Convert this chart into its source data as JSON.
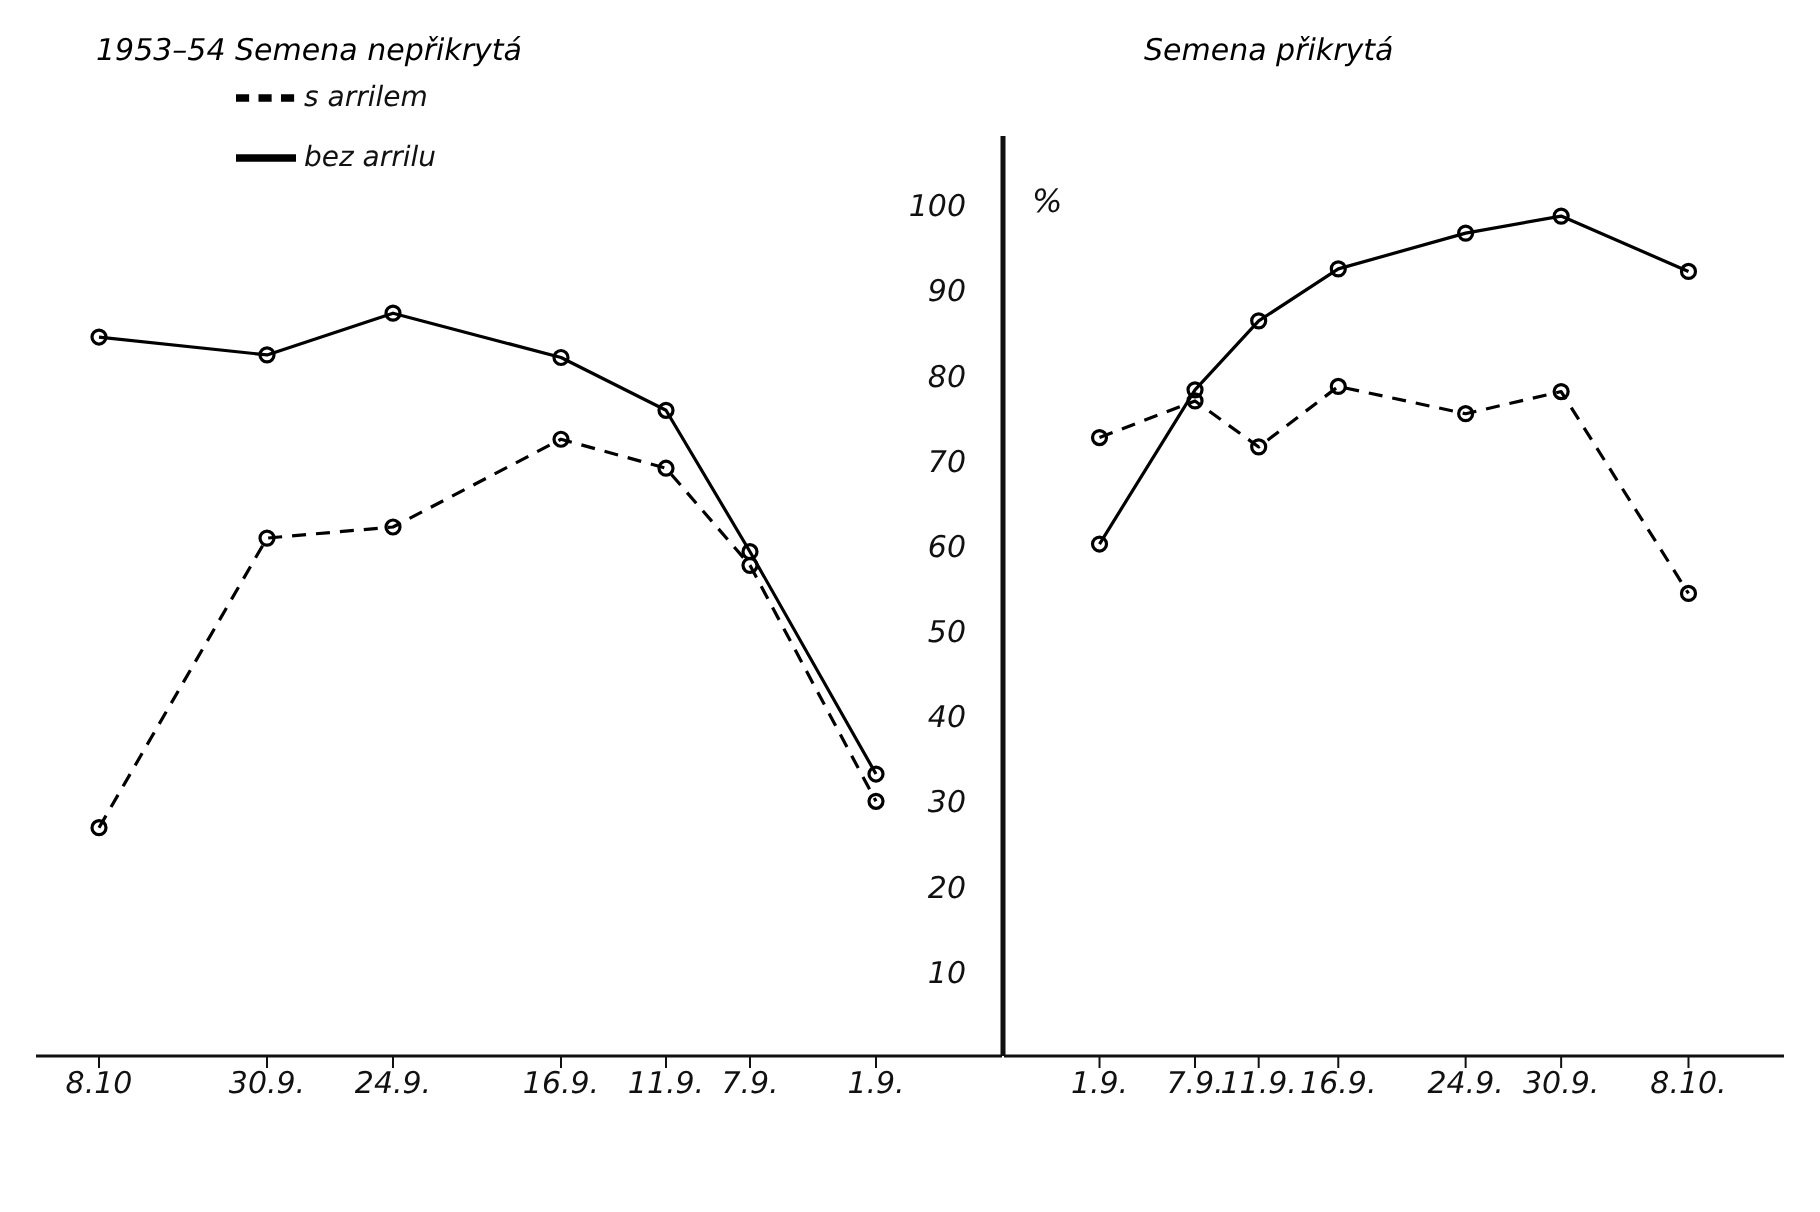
{
  "chart_data": [
    {
      "type": "line",
      "title": "1953–54 Semena nepřikrytá",
      "legend": "top left",
      "marker": "circle",
      "x": [
        "--10-08",
        "--09-30",
        "--09-24",
        "--09-16",
        "--09-11",
        "--09-07",
        "--09-01"
      ],
      "xlim": [
        "--10-11",
        "--08-26"
      ],
      "xticks": [
        {
          "value": "--10-08",
          "label": "8.10"
        },
        {
          "value": "--09-30",
          "label": "30.9."
        },
        {
          "value": "--09-24",
          "label": "24.9."
        },
        {
          "value": "--09-16",
          "label": "16.9."
        },
        {
          "value": "--09-11",
          "label": "11.9."
        },
        {
          "value": "--09-07",
          "label": "7.9."
        },
        {
          "value": "--09-01",
          "label": "1.9."
        }
      ],
      "ylim": [
        0,
        108
      ],
      "yticks": [
        10,
        20,
        30,
        40,
        50,
        60,
        70,
        80,
        90,
        100
      ],
      "series": [
        {
          "name": "s arrilem",
          "color": "#000000",
          "line_style": "dashed",
          "values": [
            26.8,
            60.8,
            62.1,
            72.4,
            69.0,
            57.6,
            29.9
          ]
        },
        {
          "name": "bez arrilu",
          "color": "#000000",
          "line_style": "solid",
          "values": [
            84.4,
            82.3,
            87.2,
            82.0,
            75.8,
            59.2,
            33.1
          ]
        }
      ]
    },
    {
      "type": "line",
      "title": "Semena přikrytá",
      "ylabel": "%",
      "legend": false,
      "marker": "circle",
      "tick_labels": "x",
      "x": [
        "--09-01",
        "--09-07",
        "--09-11",
        "--09-16",
        "--09-24",
        "--09-30",
        "--10-08"
      ],
      "xlim": [
        "--08-26",
        "--10-14"
      ],
      "xticks": [
        {
          "value": "--09-01",
          "label": "1.9."
        },
        {
          "value": "--09-07",
          "label": "7.9."
        },
        {
          "value": "--09-11",
          "label": "11.9."
        },
        {
          "value": "--09-16",
          "label": "16.9."
        },
        {
          "value": "--09-24",
          "label": "24.9."
        },
        {
          "value": "--09-30",
          "label": "30.9."
        },
        {
          "value": "--10-08",
          "label": "8.10."
        }
      ],
      "ylim": [
        0,
        108
      ],
      "yticks": [
        10,
        20,
        30,
        40,
        50,
        60,
        70,
        80,
        90,
        100
      ],
      "series": [
        {
          "color": "#000000",
          "line_style": "dashed",
          "values": [
            72.6,
            76.9,
            71.5,
            78.6,
            75.4,
            78.0,
            54.3
          ]
        },
        {
          "color": "#000000",
          "line_style": "solid",
          "values": [
            60.1,
            78.2,
            86.3,
            92.4,
            96.6,
            98.6,
            92.1
          ]
        }
      ]
    }
  ]
}
